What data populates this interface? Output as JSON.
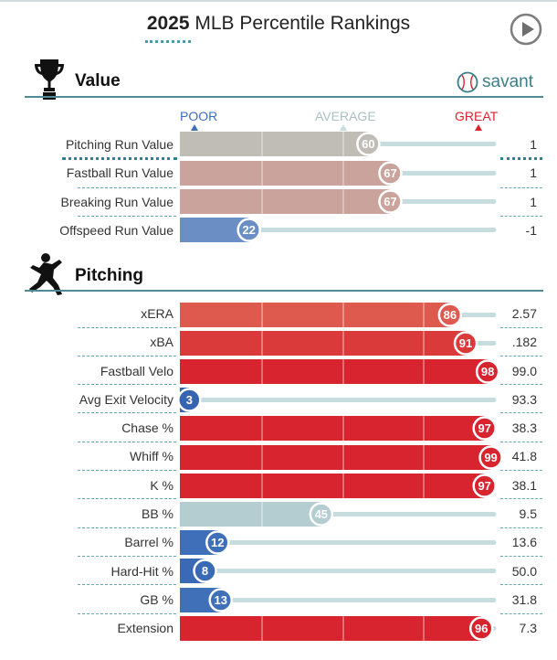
{
  "header": {
    "title_bold": "2025",
    "title_rest": " MLB Percentile Rankings",
    "play_icon": "play-circle-icon"
  },
  "brand": {
    "text": "savant",
    "icon": "baseball-icon"
  },
  "legend": {
    "poor": "POOR",
    "average": "AVERAGE",
    "great": "GREAT"
  },
  "colors": {
    "poor": "#3d6fb8",
    "average": "#bdbdbd",
    "great": "#d8242f",
    "track": "#c7dcdf",
    "accent": "#4e8b93"
  },
  "sections": [
    {
      "title": "Value",
      "icon": "trophy-icon",
      "rows": [
        {
          "label": "Pitching Run Value",
          "percentile": 60,
          "value": "1",
          "color": "#c0bcb6"
        },
        {
          "label": "Fastball Run Value",
          "percentile": 67,
          "value": "1",
          "color": "#c9a39c"
        },
        {
          "label": "Breaking Run Value",
          "percentile": 67,
          "value": "1",
          "color": "#c9a39c"
        },
        {
          "label": "Offspeed Run Value",
          "percentile": 22,
          "value": "-1",
          "color": "#6b8ec4"
        }
      ]
    },
    {
      "title": "Pitching",
      "icon": "pitcher-icon",
      "rows": [
        {
          "label": "xERA",
          "percentile": 86,
          "value": "2.57",
          "color": "#de5a4f"
        },
        {
          "label": "xBA",
          "percentile": 91,
          "value": ".182",
          "color": "#db3a3a"
        },
        {
          "label": "Fastball Velo",
          "percentile": 98,
          "value": "99.0",
          "color": "#d8242f"
        },
        {
          "label": "Avg Exit Velocity",
          "percentile": 3,
          "value": "93.3",
          "color": "#3664b2"
        },
        {
          "label": "Chase %",
          "percentile": 97,
          "value": "38.3",
          "color": "#d8242f"
        },
        {
          "label": "Whiff %",
          "percentile": 99,
          "value": "41.8",
          "color": "#d8242f"
        },
        {
          "label": "K %",
          "percentile": 97,
          "value": "38.1",
          "color": "#d8242f"
        },
        {
          "label": "BB %",
          "percentile": 45,
          "value": "9.5",
          "color": "#b4cdd0"
        },
        {
          "label": "Barrel %",
          "percentile": 12,
          "value": "13.6",
          "color": "#3f6fb8"
        },
        {
          "label": "Hard-Hit %",
          "percentile": 8,
          "value": "50.0",
          "color": "#3a6ab5"
        },
        {
          "label": "GB %",
          "percentile": 13,
          "value": "31.8",
          "color": "#4070b8"
        },
        {
          "label": "Extension",
          "percentile": 96,
          "value": "7.3",
          "color": "#d8242f"
        }
      ]
    }
  ],
  "chart_data": {
    "type": "bar",
    "title": "2025 MLB Percentile Rankings",
    "xlim": [
      0,
      100
    ],
    "legend": [
      "POOR",
      "AVERAGE",
      "GREAT"
    ],
    "categories": [
      "Pitching Run Value",
      "Fastball Run Value",
      "Breaking Run Value",
      "Offspeed Run Value",
      "xERA",
      "xBA",
      "Fastball Velo",
      "Avg Exit Velocity",
      "Chase %",
      "Whiff %",
      "K %",
      "BB %",
      "Barrel %",
      "Hard-Hit %",
      "GB %",
      "Extension"
    ],
    "series": [
      {
        "name": "",
        "values": [
          60,
          67,
          67,
          22,
          86,
          91,
          98,
          3,
          97,
          99,
          97,
          45,
          12,
          8,
          13,
          96
        ]
      }
    ],
    "stat_values": [
      "1",
      "1",
      "1",
      "-1",
      "2.57",
      ".182",
      "99.0",
      "93.3",
      "38.3",
      "41.8",
      "38.1",
      "9.5",
      "13.6",
      "50.0",
      "31.8",
      "7.3"
    ]
  }
}
